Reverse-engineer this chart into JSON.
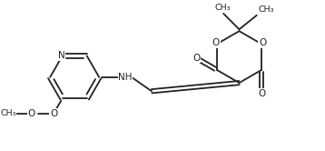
{
  "bg": "#ffffff",
  "lc": "#222222",
  "lw": 1.3,
  "fs": 7.5,
  "fs_s": 6.8,
  "fig_w": 3.58,
  "fig_h": 1.66,
  "dpi": 100,
  "xlim": [
    0.0,
    3.58
  ],
  "ylim": [
    0.0,
    1.66
  ]
}
